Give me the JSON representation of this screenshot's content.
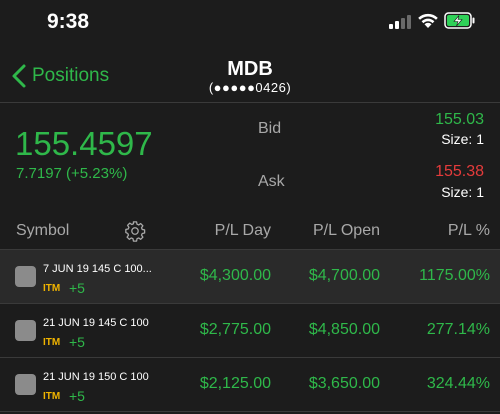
{
  "status": {
    "time": "9:38"
  },
  "nav": {
    "back_label": "Positions",
    "title": "MDB",
    "subtitle": "(●●●●●0426)"
  },
  "quote": {
    "last": "155.4597",
    "change": "7.7197 (+5.23%)",
    "bid_label": "Bid",
    "ask_label": "Ask",
    "bid": "155.03",
    "bid_size": "Size: 1",
    "ask": "155.38",
    "ask_size": "Size: 1"
  },
  "table": {
    "headers": {
      "symbol": "Symbol",
      "pl_day": "P/L Day",
      "pl_open": "P/L Open",
      "pl_pct": "P/L %"
    },
    "rows": [
      {
        "desc": "7 JUN 19 145 C 100...",
        "badge": "ITM",
        "qty": "+5",
        "pl_day": "$4,300.00",
        "pl_open": "$4,700.00",
        "pl_pct": "1175.00%"
      },
      {
        "desc": "21 JUN 19 145 C 100",
        "badge": "ITM",
        "qty": "+5",
        "pl_day": "$2,775.00",
        "pl_open": "$4,850.00",
        "pl_pct": "277.14%"
      },
      {
        "desc": "21 JUN 19 150 C 100",
        "badge": "ITM",
        "qty": "+5",
        "pl_day": "$2,125.00",
        "pl_open": "$3,650.00",
        "pl_pct": "324.44%"
      }
    ]
  },
  "colors": {
    "green": "#2fb84a",
    "red": "#e53b3b",
    "itm": "#f0b400",
    "bg": "#1c1c1c"
  },
  "icons": {
    "back": "chevron-left-icon",
    "settings": "gear-icon",
    "signal": "cellular-signal-icon",
    "wifi": "wifi-icon",
    "battery": "battery-charging-icon"
  }
}
